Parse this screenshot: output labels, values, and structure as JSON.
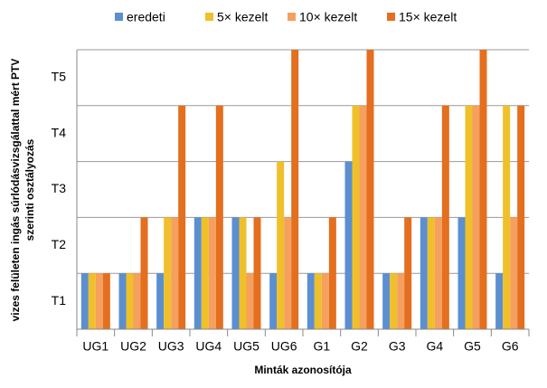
{
  "chart_data": {
    "type": "bar",
    "x_label": "Minták azonosítója",
    "y_label": [
      "vizes felületen ingás súrlódásvizsgálattal mért PTV",
      "szerinti osztályozás"
    ],
    "categories": [
      "UG1",
      "UG2",
      "UG3",
      "UG4",
      "UG5",
      "UG6",
      "G1",
      "G2",
      "G3",
      "G4",
      "G5",
      "G6"
    ],
    "series": [
      {
        "name": "eredeti",
        "color": "#5b8fd0",
        "values": [
          1,
          1,
          1,
          2,
          2,
          1,
          1,
          3,
          1,
          2,
          2,
          1
        ]
      },
      {
        "name": "5× kezelt",
        "color": "#efc02a",
        "values": [
          1,
          1,
          2,
          2,
          2,
          3,
          1,
          4,
          1,
          2,
          4,
          4
        ]
      },
      {
        "name": "10× kezelt",
        "color": "#f5a05e",
        "values": [
          1,
          1,
          2,
          2,
          1,
          2,
          1,
          4,
          1,
          2,
          4,
          2
        ]
      },
      {
        "name": "15× kezelt",
        "color": "#e36f1f",
        "values": [
          1,
          2,
          4,
          4,
          2,
          5,
          2,
          5,
          2,
          4,
          5,
          4
        ]
      }
    ],
    "ylim": [
      0,
      5
    ],
    "yticks": [
      {
        "value": 0.5,
        "label": "T1"
      },
      {
        "value": 1.5,
        "label": "T2"
      },
      {
        "value": 2.5,
        "label": "T3"
      },
      {
        "value": 3.5,
        "label": "T4"
      },
      {
        "value": 4.5,
        "label": "T5"
      }
    ],
    "ygrid": [
      0,
      1,
      2,
      3,
      4,
      5
    ],
    "legend": "top"
  }
}
